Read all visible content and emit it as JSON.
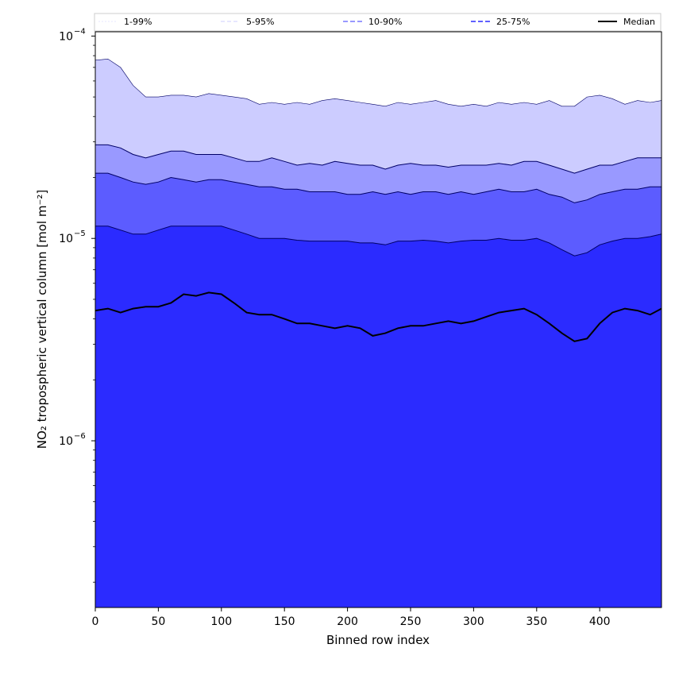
{
  "chart_data": {
    "type": "area",
    "xlabel": "Binned row index",
    "ylabel": "NO₂ tropospheric vertical column [mol m⁻²]",
    "yscale": "log",
    "xlim": [
      0,
      449
    ],
    "ylim": [
      1.5e-07,
      0.000105
    ],
    "x_ticks": [
      0,
      50,
      100,
      150,
      200,
      250,
      300,
      350,
      400
    ],
    "x_tick_labels": [
      "0",
      "50",
      "100",
      "150",
      "200",
      "250",
      "300",
      "350",
      "400"
    ],
    "y_ticks": [
      1e-06,
      1e-05,
      0.0001
    ],
    "y_tick_labels": [
      "10",
      "10",
      "10"
    ],
    "y_tick_exponents": [
      "−6",
      "−5",
      "−4"
    ],
    "grid": false,
    "legend_position": "top",
    "x": [
      0,
      10,
      20,
      30,
      40,
      50,
      60,
      70,
      80,
      90,
      100,
      110,
      120,
      130,
      140,
      150,
      160,
      170,
      180,
      190,
      200,
      210,
      220,
      230,
      240,
      250,
      260,
      270,
      280,
      290,
      300,
      310,
      320,
      330,
      340,
      350,
      360,
      370,
      380,
      390,
      400,
      410,
      420,
      430,
      440,
      449
    ],
    "series": [
      {
        "name": "1-99%",
        "color": "#ccccff",
        "lower": [
          1.5e-07,
          1.5e-07,
          1.5e-07,
          1.5e-07,
          1.5e-07,
          1.5e-07,
          1.5e-07,
          1.5e-07,
          1.5e-07,
          1.5e-07,
          1.5e-07,
          1.5e-07,
          1.5e-07,
          1.5e-07,
          1.5e-07,
          1.5e-07,
          1.5e-07,
          1.5e-07,
          1.5e-07,
          1.5e-07,
          1.5e-07,
          1.5e-07,
          1.5e-07,
          1.5e-07,
          1.5e-07,
          1.5e-07,
          1.5e-07,
          1.5e-07,
          1.5e-07,
          1.5e-07,
          1.5e-07,
          1.5e-07,
          1.5e-07,
          1.5e-07,
          1.5e-07,
          1.5e-07,
          1.5e-07,
          1.5e-07,
          1.5e-07,
          1.5e-07,
          1.5e-07,
          1.5e-07,
          1.5e-07,
          1.5e-07,
          1.5e-07,
          1.5e-07
        ],
        "upper": [
          7.6e-05,
          7.7e-05,
          7e-05,
          5.7e-05,
          5e-05,
          5e-05,
          5.1e-05,
          5.1e-05,
          5e-05,
          5.2e-05,
          5.1e-05,
          5e-05,
          4.9e-05,
          4.6e-05,
          4.7e-05,
          4.6e-05,
          4.7e-05,
          4.6e-05,
          4.8e-05,
          4.9e-05,
          4.8e-05,
          4.7e-05,
          4.6e-05,
          4.5e-05,
          4.7e-05,
          4.6e-05,
          4.7e-05,
          4.8e-05,
          4.6e-05,
          4.5e-05,
          4.6e-05,
          4.5e-05,
          4.7e-05,
          4.6e-05,
          4.7e-05,
          4.6e-05,
          4.8e-05,
          4.5e-05,
          4.5e-05,
          5e-05,
          5.1e-05,
          4.9e-05,
          4.6e-05,
          4.8e-05,
          4.7e-05,
          4.8e-05
        ]
      },
      {
        "name": "5-95%",
        "color": "#9999ff",
        "lower": [
          1.5e-07,
          1.5e-07,
          1.5e-07,
          1.5e-07,
          1.5e-07,
          1.5e-07,
          1.5e-07,
          1.5e-07,
          1.5e-07,
          1.5e-07,
          1.5e-07,
          1.5e-07,
          1.5e-07,
          1.5e-07,
          1.5e-07,
          1.5e-07,
          1.5e-07,
          1.5e-07,
          1.5e-07,
          1.5e-07,
          1.5e-07,
          1.5e-07,
          1.5e-07,
          1.5e-07,
          1.5e-07,
          1.5e-07,
          1.5e-07,
          1.5e-07,
          1.5e-07,
          1.5e-07,
          1.5e-07,
          1.5e-07,
          1.5e-07,
          1.5e-07,
          1.5e-07,
          1.5e-07,
          1.5e-07,
          1.5e-07,
          1.5e-07,
          1.5e-07,
          1.5e-07,
          1.5e-07,
          1.5e-07,
          1.5e-07,
          1.5e-07,
          1.5e-07
        ],
        "upper": [
          2.9e-05,
          2.9e-05,
          2.8e-05,
          2.6e-05,
          2.5e-05,
          2.6e-05,
          2.7e-05,
          2.7e-05,
          2.6e-05,
          2.6e-05,
          2.6e-05,
          2.5e-05,
          2.4e-05,
          2.4e-05,
          2.5e-05,
          2.4e-05,
          2.3e-05,
          2.35e-05,
          2.3e-05,
          2.4e-05,
          2.35e-05,
          2.3e-05,
          2.3e-05,
          2.2e-05,
          2.3e-05,
          2.35e-05,
          2.3e-05,
          2.3e-05,
          2.25e-05,
          2.3e-05,
          2.3e-05,
          2.3e-05,
          2.35e-05,
          2.3e-05,
          2.4e-05,
          2.4e-05,
          2.3e-05,
          2.2e-05,
          2.1e-05,
          2.2e-05,
          2.3e-05,
          2.3e-05,
          2.4e-05,
          2.5e-05,
          2.5e-05,
          2.5e-05
        ]
      },
      {
        "name": "10-90%",
        "color": "#5c5cff",
        "lower": [
          1.5e-07,
          1.5e-07,
          1.5e-07,
          1.5e-07,
          1.5e-07,
          1.5e-07,
          1.5e-07,
          1.5e-07,
          1.5e-07,
          1.5e-07,
          1.5e-07,
          1.5e-07,
          1.5e-07,
          1.5e-07,
          1.5e-07,
          1.5e-07,
          1.5e-07,
          1.5e-07,
          1.5e-07,
          1.5e-07,
          1.5e-07,
          1.5e-07,
          1.5e-07,
          1.5e-07,
          1.5e-07,
          1.5e-07,
          1.5e-07,
          1.5e-07,
          1.5e-07,
          1.5e-07,
          1.5e-07,
          1.5e-07,
          1.5e-07,
          1.5e-07,
          1.5e-07,
          1.5e-07,
          1.5e-07,
          1.5e-07,
          1.5e-07,
          1.5e-07,
          1.5e-07,
          1.5e-07,
          1.5e-07,
          1.5e-07,
          1.5e-07,
          1.5e-07
        ],
        "upper": [
          2.1e-05,
          2.1e-05,
          2e-05,
          1.9e-05,
          1.85e-05,
          1.9e-05,
          2e-05,
          1.95e-05,
          1.9e-05,
          1.95e-05,
          1.95e-05,
          1.9e-05,
          1.85e-05,
          1.8e-05,
          1.8e-05,
          1.75e-05,
          1.75e-05,
          1.7e-05,
          1.7e-05,
          1.7e-05,
          1.65e-05,
          1.65e-05,
          1.7e-05,
          1.65e-05,
          1.7e-05,
          1.65e-05,
          1.7e-05,
          1.7e-05,
          1.65e-05,
          1.7e-05,
          1.65e-05,
          1.7e-05,
          1.75e-05,
          1.7e-05,
          1.7e-05,
          1.75e-05,
          1.65e-05,
          1.6e-05,
          1.5e-05,
          1.55e-05,
          1.65e-05,
          1.7e-05,
          1.75e-05,
          1.75e-05,
          1.8e-05,
          1.8e-05
        ]
      },
      {
        "name": "25-75%",
        "color": "#2b2bff",
        "lower": [
          1.5e-07,
          1.5e-07,
          1.5e-07,
          1.5e-07,
          1.5e-07,
          1.5e-07,
          1.5e-07,
          1.5e-07,
          1.5e-07,
          1.5e-07,
          1.5e-07,
          1.5e-07,
          1.5e-07,
          1.5e-07,
          1.5e-07,
          1.5e-07,
          1.5e-07,
          1.5e-07,
          1.5e-07,
          1.5e-07,
          1.5e-07,
          1.5e-07,
          1.5e-07,
          1.5e-07,
          1.5e-07,
          1.5e-07,
          1.5e-07,
          1.5e-07,
          1.5e-07,
          1.5e-07,
          1.5e-07,
          1.5e-07,
          1.5e-07,
          1.5e-07,
          1.5e-07,
          1.5e-07,
          1.5e-07,
          1.5e-07,
          1.5e-07,
          1.5e-07,
          1.5e-07,
          1.5e-07,
          1.5e-07,
          1.5e-07,
          1.5e-07,
          1.5e-07
        ],
        "upper": [
          1.15e-05,
          1.15e-05,
          1.1e-05,
          1.05e-05,
          1.05e-05,
          1.1e-05,
          1.15e-05,
          1.15e-05,
          1.15e-05,
          1.15e-05,
          1.15e-05,
          1.1e-05,
          1.05e-05,
          1e-05,
          1e-05,
          1e-05,
          9.8e-06,
          9.7e-06,
          9.7e-06,
          9.7e-06,
          9.7e-06,
          9.5e-06,
          9.5e-06,
          9.3e-06,
          9.7e-06,
          9.7e-06,
          9.8e-06,
          9.7e-06,
          9.5e-06,
          9.7e-06,
          9.8e-06,
          9.8e-06,
          1e-05,
          9.8e-06,
          9.8e-06,
          1e-05,
          9.5e-06,
          8.8e-06,
          8.2e-06,
          8.5e-06,
          9.3e-06,
          9.7e-06,
          1e-05,
          1e-05,
          1.02e-05,
          1.05e-05
        ]
      },
      {
        "name": "Median",
        "color": "#000000",
        "values": [
          4.4e-06,
          4.5e-06,
          4.3e-06,
          4.5e-06,
          4.6e-06,
          4.6e-06,
          4.8e-06,
          5.3e-06,
          5.2e-06,
          5.4e-06,
          5.3e-06,
          4.8e-06,
          4.3e-06,
          4.2e-06,
          4.2e-06,
          4e-06,
          3.8e-06,
          3.8e-06,
          3.7e-06,
          3.6e-06,
          3.7e-06,
          3.6e-06,
          3.3e-06,
          3.4e-06,
          3.6e-06,
          3.7e-06,
          3.7e-06,
          3.8e-06,
          3.9e-06,
          3.8e-06,
          3.9e-06,
          4.1e-06,
          4.3e-06,
          4.4e-06,
          4.5e-06,
          4.2e-06,
          3.8e-06,
          3.4e-06,
          3.1e-06,
          3.2e-06,
          3.8e-06,
          4.3e-06,
          4.5e-06,
          4.4e-06,
          4.2e-06,
          4.5e-06
        ]
      }
    ]
  }
}
